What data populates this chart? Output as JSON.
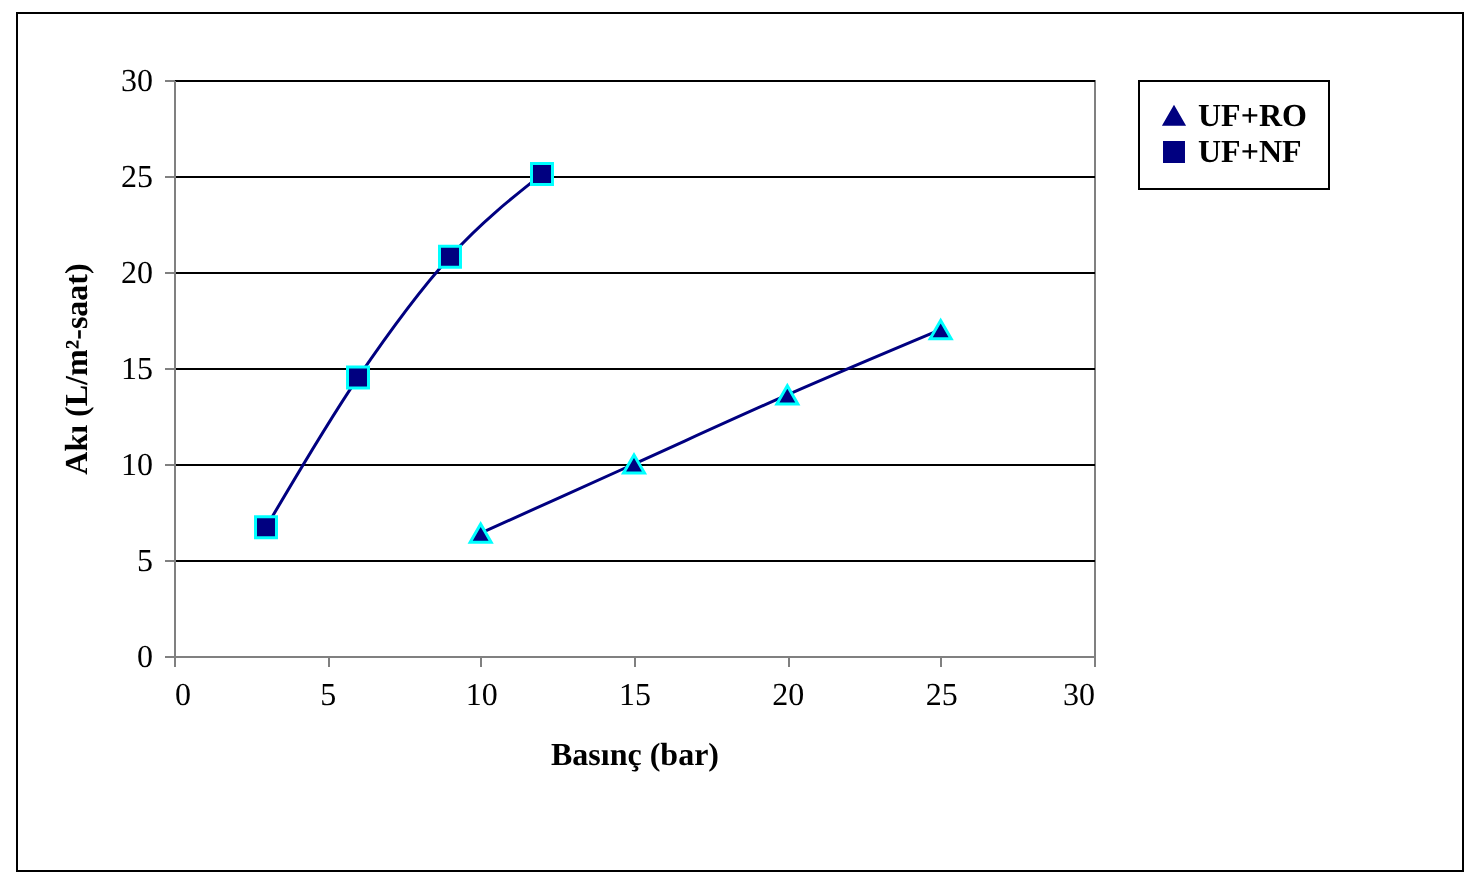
{
  "chart_data": {
    "type": "line",
    "xlabel": "Basınç (bar)",
    "ylabel": "Akı (L/m²-saat)",
    "xlim": [
      0,
      30
    ],
    "xticks": [
      0,
      5,
      10,
      15,
      20,
      25,
      30
    ],
    "ylim": [
      0,
      30
    ],
    "yticks": [
      0,
      5,
      10,
      15,
      20,
      25,
      30
    ],
    "grid": "y",
    "legend": "right",
    "line_style": "solid",
    "series": [
      {
        "name": "UF+RO",
        "color": "#000080",
        "marker": "triangle",
        "x": [
          10,
          15,
          20,
          25
        ],
        "values": [
          6.4,
          10.0,
          13.6,
          17.0
        ]
      },
      {
        "name": "UF+NF",
        "color": "#000080",
        "marker": "square",
        "x": [
          3,
          6,
          9,
          12
        ],
        "values": [
          6.7,
          14.5,
          20.8,
          25.1
        ]
      }
    ]
  }
}
